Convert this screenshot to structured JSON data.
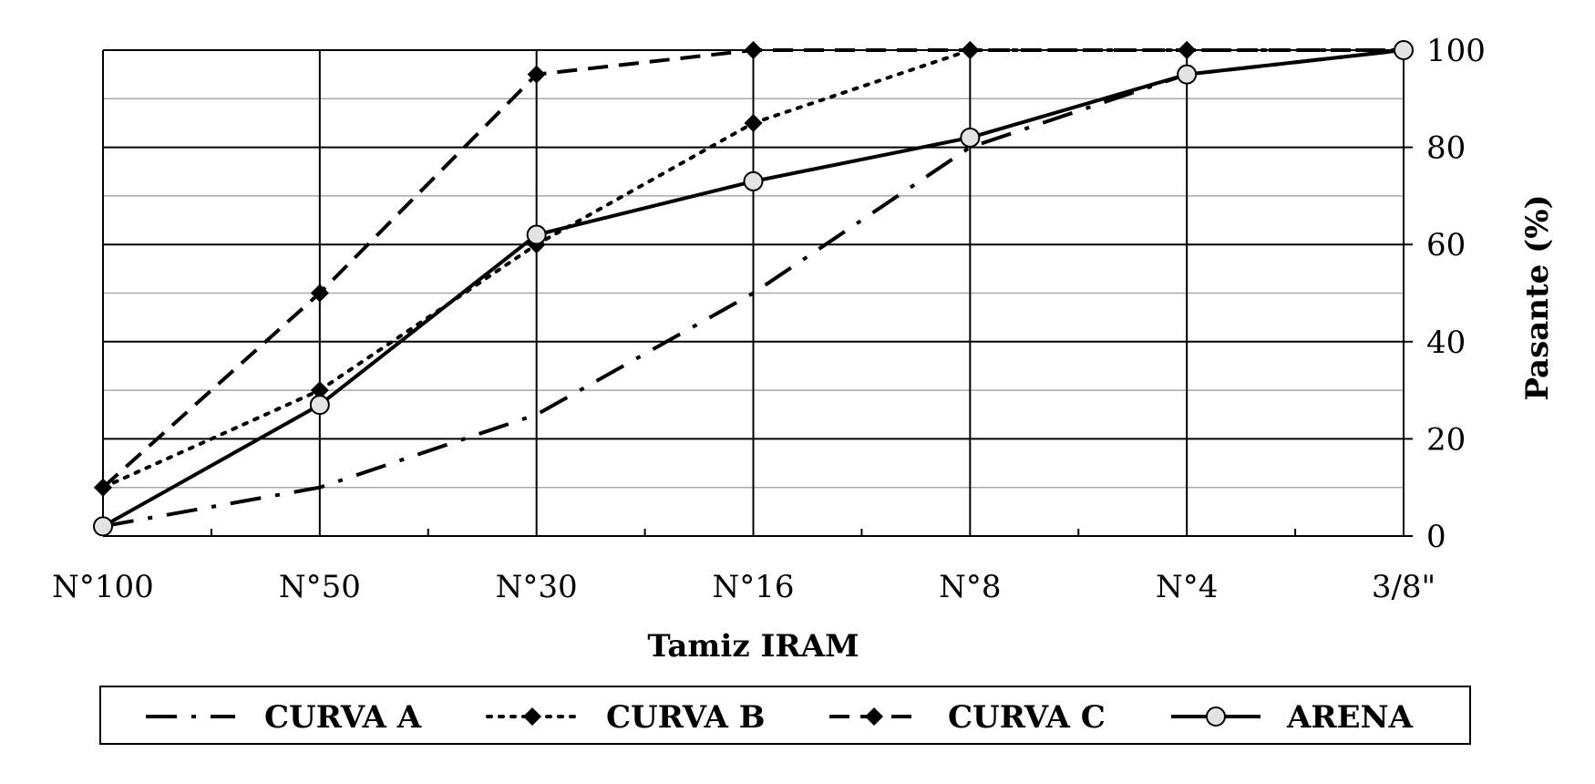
{
  "chart_data": {
    "type": "line",
    "title": "",
    "xlabel": "Tamiz IRAM",
    "ylabel": "Pasante (%)",
    "categories": [
      "N°100",
      "N°50",
      "N°30",
      "N°16",
      "N°8",
      "N°4",
      "3/8\""
    ],
    "ylim": [
      0,
      100
    ],
    "yticks": [
      0,
      20,
      40,
      60,
      80,
      100
    ],
    "y_axis_side": "right",
    "grid": true,
    "legend_position": "bottom",
    "series": [
      {
        "name": "CURVA A",
        "style": "dash-dot",
        "marker": "none",
        "color": "#000000",
        "values": [
          2,
          10,
          25,
          50,
          80,
          95,
          100
        ]
      },
      {
        "name": "CURVA B",
        "style": "dotted",
        "marker": "diamond",
        "color": "#000000",
        "values": [
          10,
          30,
          60,
          85,
          100,
          100,
          100
        ]
      },
      {
        "name": "CURVA C",
        "style": "dashed",
        "marker": "diamond",
        "color": "#000000",
        "values": [
          10,
          50,
          95,
          100,
          100,
          100,
          100
        ]
      },
      {
        "name": "ARENA",
        "style": "solid",
        "marker": "circle",
        "color": "#000000",
        "values": [
          2,
          27,
          62,
          73,
          82,
          95,
          100
        ]
      }
    ]
  }
}
